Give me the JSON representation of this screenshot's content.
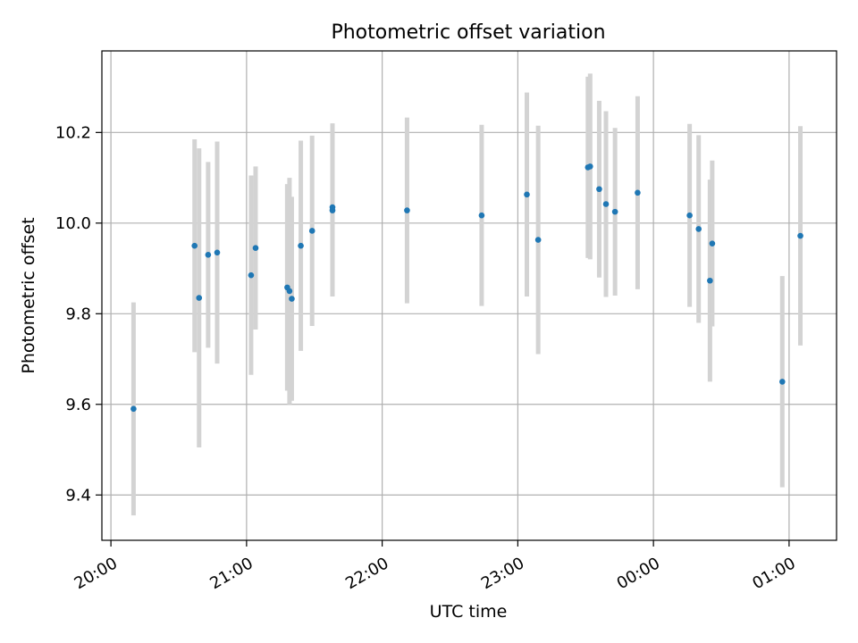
{
  "chart_data": {
    "type": "scatter",
    "title": "Photometric offset variation",
    "xlabel": "UTC time",
    "ylabel": "Photometric offset",
    "x_unit": "hours (UTC, times after midnight shown past 24:00)",
    "xlim": [
      "19:56",
      "01:21"
    ],
    "ylim": [
      9.3,
      10.38
    ],
    "x_ticks": [
      "20:00",
      "21:00",
      "22:00",
      "23:00",
      "00:00",
      "01:00"
    ],
    "y_ticks": [
      "9.4",
      "9.6",
      "9.8",
      "10.0",
      "10.2"
    ],
    "grid": true,
    "point_color": "#1f77b4",
    "errorbar_color": "#d3d3d3",
    "points": [
      {
        "time": "20:10",
        "y": 9.59,
        "err": 0.235
      },
      {
        "time": "20:37",
        "y": 9.95,
        "err": 0.235
      },
      {
        "time": "20:39",
        "y": 9.835,
        "err": 0.33
      },
      {
        "time": "20:43",
        "y": 9.93,
        "err": 0.205
      },
      {
        "time": "20:47",
        "y": 9.935,
        "err": 0.245
      },
      {
        "time": "21:02",
        "y": 9.885,
        "err": 0.22
      },
      {
        "time": "21:04",
        "y": 9.945,
        "err": 0.18
      },
      {
        "time": "21:18",
        "y": 9.858,
        "err": 0.228
      },
      {
        "time": "21:19",
        "y": 9.85,
        "err": 0.25
      },
      {
        "time": "21:20",
        "y": 9.833,
        "err": 0.225
      },
      {
        "time": "21:24",
        "y": 9.95,
        "err": 0.232
      },
      {
        "time": "21:29",
        "y": 9.983,
        "err": 0.21
      },
      {
        "time": "21:38",
        "y": 10.028,
        "err": 0.19
      },
      {
        "time": "21:38",
        "y": 10.035,
        "err": 0.185
      },
      {
        "time": "22:11",
        "y": 10.028,
        "err": 0.205
      },
      {
        "time": "22:44",
        "y": 10.017,
        "err": 0.2
      },
      {
        "time": "23:04",
        "y": 10.063,
        "err": 0.225
      },
      {
        "time": "23:09",
        "y": 9.963,
        "err": 0.252
      },
      {
        "time": "23:31",
        "y": 10.123,
        "err": 0.2
      },
      {
        "time": "23:32",
        "y": 10.125,
        "err": 0.205
      },
      {
        "time": "23:36",
        "y": 10.075,
        "err": 0.195
      },
      {
        "time": "23:39",
        "y": 10.042,
        "err": 0.205
      },
      {
        "time": "23:43",
        "y": 10.025,
        "err": 0.185
      },
      {
        "time": "23:53",
        "y": 10.067,
        "err": 0.213
      },
      {
        "time": "00:16",
        "y": 10.017,
        "err": 0.202
      },
      {
        "time": "00:20",
        "y": 9.987,
        "err": 0.207
      },
      {
        "time": "00:25",
        "y": 9.873,
        "err": 0.223
      },
      {
        "time": "00:26",
        "y": 9.955,
        "err": 0.183
      },
      {
        "time": "00:57",
        "y": 9.65,
        "err": 0.233
      },
      {
        "time": "01:05",
        "y": 9.972,
        "err": 0.242
      }
    ]
  }
}
